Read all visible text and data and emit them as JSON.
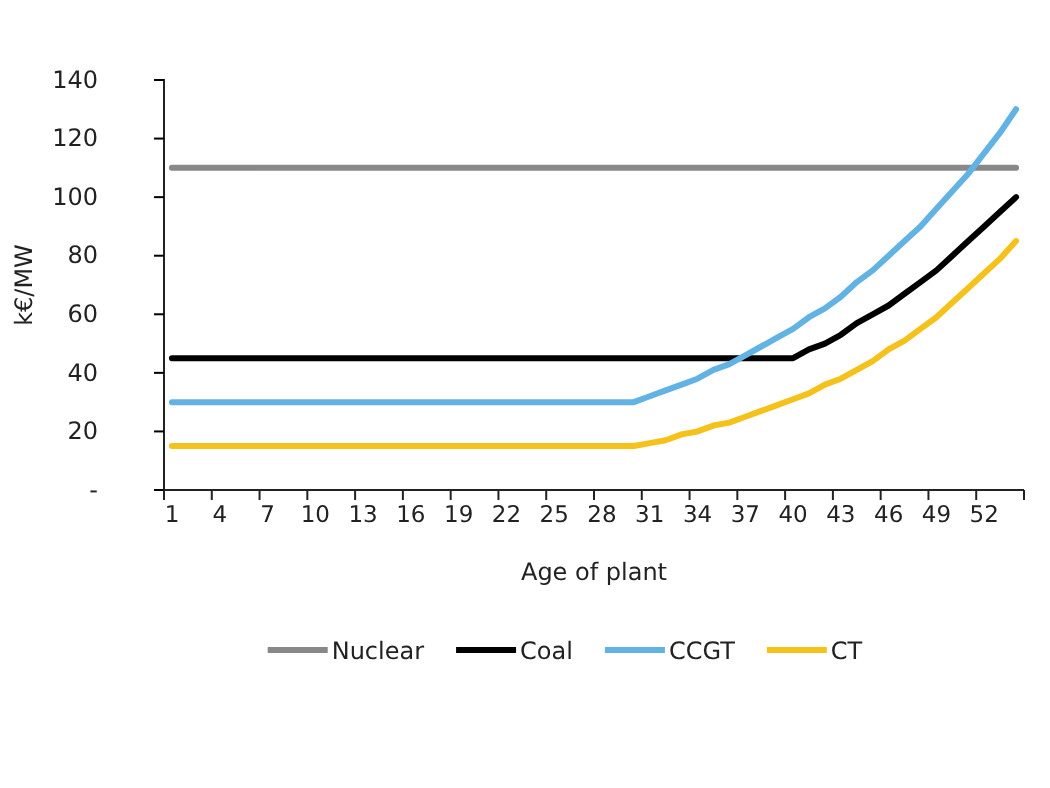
{
  "chart_data": {
    "type": "line",
    "xlabel": "Age of plant",
    "ylabel": "k€/MW",
    "categories": [
      "1",
      null,
      null,
      "4",
      null,
      null,
      "7",
      null,
      null,
      "10",
      null,
      null,
      "13",
      null,
      null,
      "16",
      null,
      null,
      "19",
      null,
      null,
      "22",
      null,
      null,
      "25",
      null,
      null,
      "28",
      null,
      null,
      "31",
      null,
      null,
      "34",
      null,
      null,
      "37",
      null,
      null,
      "40",
      null,
      null,
      "43",
      null,
      null,
      "46",
      null,
      null,
      "49",
      null,
      null,
      "52",
      null,
      null
    ],
    "series": [
      {
        "name": "Nuclear",
        "color": "#888888",
        "values": [
          110,
          110,
          110,
          110,
          110,
          110,
          110,
          110,
          110,
          110,
          110,
          110,
          110,
          110,
          110,
          110,
          110,
          110,
          110,
          110,
          110,
          110,
          110,
          110,
          110,
          110,
          110,
          110,
          110,
          110,
          110,
          110,
          110,
          110,
          110,
          110,
          110,
          110,
          110,
          110,
          110,
          110,
          110,
          110,
          110,
          110,
          110,
          110,
          110,
          110,
          110,
          110,
          110,
          110
        ]
      },
      {
        "name": "Coal",
        "color": "#000000",
        "values": [
          45,
          45,
          45,
          45,
          45,
          45,
          45,
          45,
          45,
          45,
          45,
          45,
          45,
          45,
          45,
          45,
          45,
          45,
          45,
          45,
          45,
          45,
          45,
          45,
          45,
          45,
          45,
          45,
          45,
          45,
          45,
          45,
          45,
          45,
          45,
          45,
          45,
          45,
          45,
          45,
          48,
          50,
          53,
          57,
          60,
          63,
          67,
          71,
          75,
          80,
          85,
          90,
          95,
          100
        ]
      },
      {
        "name": "CCGT",
        "color": "#62b3e3",
        "values": [
          30,
          30,
          30,
          30,
          30,
          30,
          30,
          30,
          30,
          30,
          30,
          30,
          30,
          30,
          30,
          30,
          30,
          30,
          30,
          30,
          30,
          30,
          30,
          30,
          30,
          30,
          30,
          30,
          30,
          30,
          32,
          34,
          36,
          38,
          41,
          43,
          46,
          49,
          52,
          55,
          59,
          62,
          66,
          71,
          75,
          80,
          85,
          90,
          96,
          102,
          108,
          115,
          122,
          130
        ]
      },
      {
        "name": "CT",
        "color": "#f5c11b",
        "values": [
          15,
          15,
          15,
          15,
          15,
          15,
          15,
          15,
          15,
          15,
          15,
          15,
          15,
          15,
          15,
          15,
          15,
          15,
          15,
          15,
          15,
          15,
          15,
          15,
          15,
          15,
          15,
          15,
          15,
          15,
          16,
          17,
          19,
          20,
          22,
          23,
          25,
          27,
          29,
          31,
          33,
          36,
          38,
          41,
          44,
          48,
          51,
          55,
          59,
          64,
          69,
          74,
          79,
          85
        ]
      }
    ],
    "ylim": [
      0,
      140
    ],
    "yticks": [
      {
        "value": 0,
        "label": "-"
      },
      20,
      40,
      60,
      80,
      100,
      120,
      140
    ],
    "legend": "bottom",
    "marker": "none",
    "line_style": "solid"
  }
}
